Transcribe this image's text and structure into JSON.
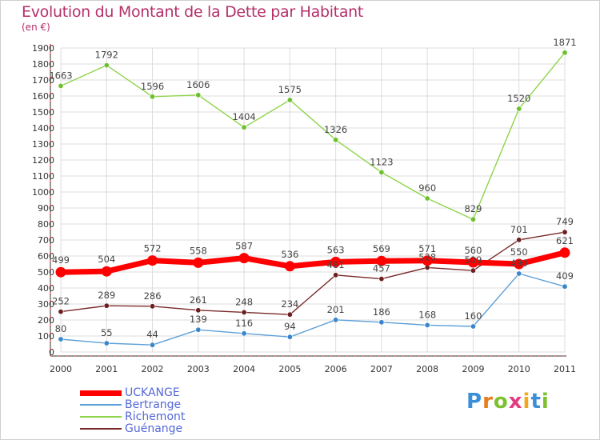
{
  "title": "Evolution du Montant de la Dette par Habitant",
  "subtitle": "(en €)",
  "logo": {
    "text": "Proxiti",
    "letter_colors": [
      "#3a8fd8",
      "#e87d1e",
      "#7cbf2f",
      "#e23b7f",
      "#f0a81c",
      "#3a8fd8",
      "#7cbf2f"
    ]
  },
  "chart_data": {
    "type": "line",
    "title": "Evolution du Montant de la Dette par Habitant",
    "ylabel": "(en €)",
    "xlabel": "",
    "categories": [
      "2000",
      "2001",
      "2002",
      "2003",
      "2004",
      "2005",
      "2006",
      "2007",
      "2008",
      "2009",
      "2010",
      "2011"
    ],
    "ylim": [
      0,
      1900
    ],
    "yticks": [
      0,
      100,
      200,
      300,
      400,
      500,
      600,
      700,
      800,
      900,
      1000,
      1100,
      1200,
      1300,
      1400,
      1500,
      1600,
      1700,
      1800,
      1900
    ],
    "grid": true,
    "legend_position": "bottom-left",
    "series": [
      {
        "name": "Richemont",
        "color": "#8ed44a",
        "marker": "#6ec02d",
        "emphasis": false,
        "values": [
          1663,
          1792,
          1596,
          1606,
          1404,
          1575,
          1326,
          1123,
          960,
          829,
          1520,
          1871
        ]
      },
      {
        "name": "Guénange",
        "color": "#7a2a2a",
        "marker": "#6b1f1f",
        "emphasis": false,
        "values": [
          252,
          289,
          286,
          261,
          248,
          234,
          481,
          457,
          528,
          509,
          701,
          749
        ]
      },
      {
        "name": "Bertrange",
        "color": "#5ea0d8",
        "marker": "#3a86cc",
        "emphasis": false,
        "values": [
          80,
          55,
          44,
          139,
          116,
          94,
          201,
          186,
          168,
          160,
          490,
          409
        ]
      },
      {
        "name": "UCKANGE",
        "color": "#ff0000",
        "marker": "#ff0000",
        "emphasis": true,
        "values": [
          499,
          504,
          572,
          558,
          587,
          536,
          563,
          569,
          571,
          560,
          550,
          621
        ]
      }
    ],
    "data_labels": [
      {
        "series": "Richemont",
        "labels": [
          "1663",
          "1792",
          "1596",
          "1606",
          "1404",
          "1575",
          "1326",
          "1123",
          "960",
          "829",
          "1520",
          "1871"
        ]
      },
      {
        "series": "Guénange",
        "labels": [
          "252",
          "289",
          "286",
          "261",
          "248",
          "234",
          "481",
          "457",
          "528",
          "509",
          "701",
          "749"
        ]
      },
      {
        "series": "Bertrange",
        "labels": [
          "80",
          "55",
          "44",
          "139",
          "116",
          "94",
          "201",
          "186",
          "168",
          "160",
          "490",
          "409"
        ]
      },
      {
        "series": "UCKANGE",
        "labels": [
          "499",
          "504",
          "572",
          "558",
          "587",
          "536",
          "563",
          "569",
          "571",
          "560",
          "550",
          "621"
        ]
      }
    ]
  },
  "legend": [
    {
      "name": "UCKANGE",
      "color": "#ff0000",
      "thickness": 7
    },
    {
      "name": "Bertrange",
      "color": "#5ea0d8",
      "thickness": 2
    },
    {
      "name": "Richemont",
      "color": "#8ed44a",
      "thickness": 2
    },
    {
      "name": "Guénange",
      "color": "#7a2a2a",
      "thickness": 2
    }
  ]
}
